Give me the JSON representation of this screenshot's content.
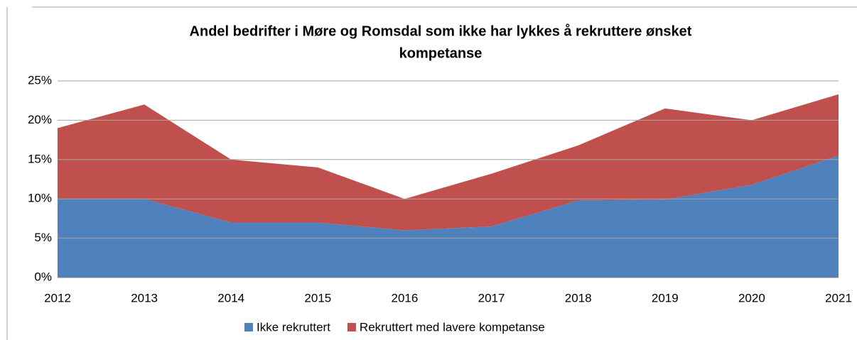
{
  "chart_data": {
    "type": "stacked_area",
    "title": [
      "Andel bedrifter i Møre og Romsdal som ikke har lykkes å rekruttere ønsket",
      "kompetanse"
    ],
    "categories": [
      "2012",
      "2013",
      "2014",
      "2015",
      "2016",
      "2017",
      "2018",
      "2019",
      "2020",
      "2021"
    ],
    "series": [
      {
        "name": "Ikke rekruttert",
        "color": "#4f81bd",
        "values": [
          10,
          10,
          7,
          7,
          6,
          6.5,
          9.8,
          9.9,
          11.8,
          15.5
        ]
      },
      {
        "name": "Rekruttert med lavere kompetanse",
        "color": "#c0504d",
        "values": [
          9,
          12,
          8,
          7,
          4,
          6.7,
          7,
          11.6,
          8.2,
          7.8
        ]
      }
    ],
    "ylim": [
      0,
      25
    ],
    "yticks": [
      {
        "value": 0,
        "label": "0%"
      },
      {
        "value": 5,
        "label": "5%"
      },
      {
        "value": 10,
        "label": "10%"
      },
      {
        "value": 15,
        "label": "15%"
      },
      {
        "value": 20,
        "label": "20%"
      },
      {
        "value": 25,
        "label": "25%"
      }
    ],
    "grid": true,
    "legend": "bottom"
  }
}
